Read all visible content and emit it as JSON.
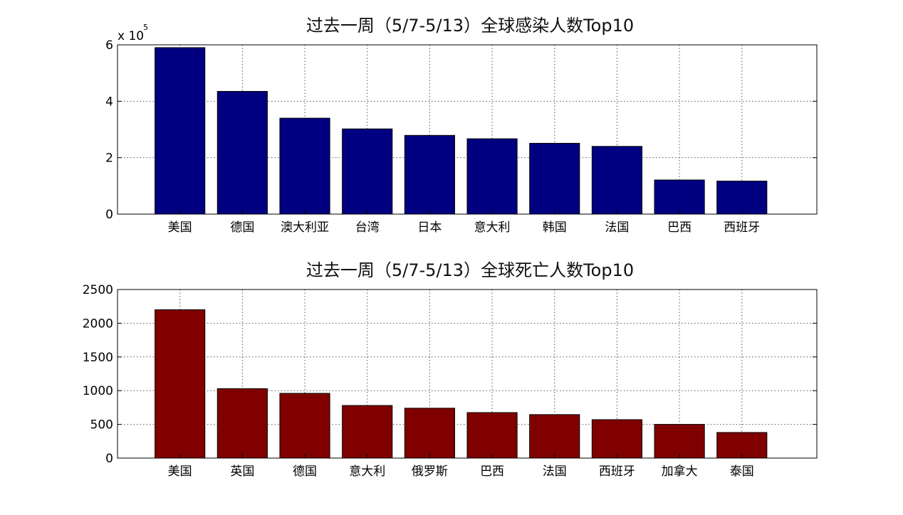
{
  "chart_data": [
    {
      "type": "bar",
      "title": "过去一周（5/7-5/13）全球感染人数Top10",
      "categories": [
        "美国",
        "德国",
        "澳大利亚",
        "台湾",
        "日本",
        "意大利",
        "韩国",
        "法国",
        "巴西",
        "西班牙"
      ],
      "values": [
        590000,
        435000,
        340000,
        302000,
        279000,
        267000,
        251000,
        240000,
        121000,
        117000
      ],
      "ylim": [
        0,
        600000
      ],
      "yticks": [
        0,
        200000,
        400000,
        600000
      ],
      "ytick_labels": [
        "0",
        "2",
        "4",
        "6"
      ],
      "exponent_label": {
        "base": "x 10",
        "power": "5"
      },
      "grid": true,
      "color": "#000080"
    },
    {
      "type": "bar",
      "title": "过去一周（5/7-5/13）全球死亡人数Top10",
      "categories": [
        "美国",
        "英国",
        "德国",
        "意大利",
        "俄罗斯",
        "巴西",
        "法国",
        "西班牙",
        "加拿大",
        "泰国"
      ],
      "values": [
        2200,
        1030,
        960,
        780,
        740,
        675,
        645,
        570,
        500,
        380
      ],
      "ylim": [
        0,
        2500
      ],
      "yticks": [
        0,
        500,
        1000,
        1500,
        2000,
        2500
      ],
      "ytick_labels": [
        "0",
        "500",
        "1000",
        "1500",
        "2000",
        "2500"
      ],
      "grid": true,
      "color": "#800000"
    }
  ]
}
